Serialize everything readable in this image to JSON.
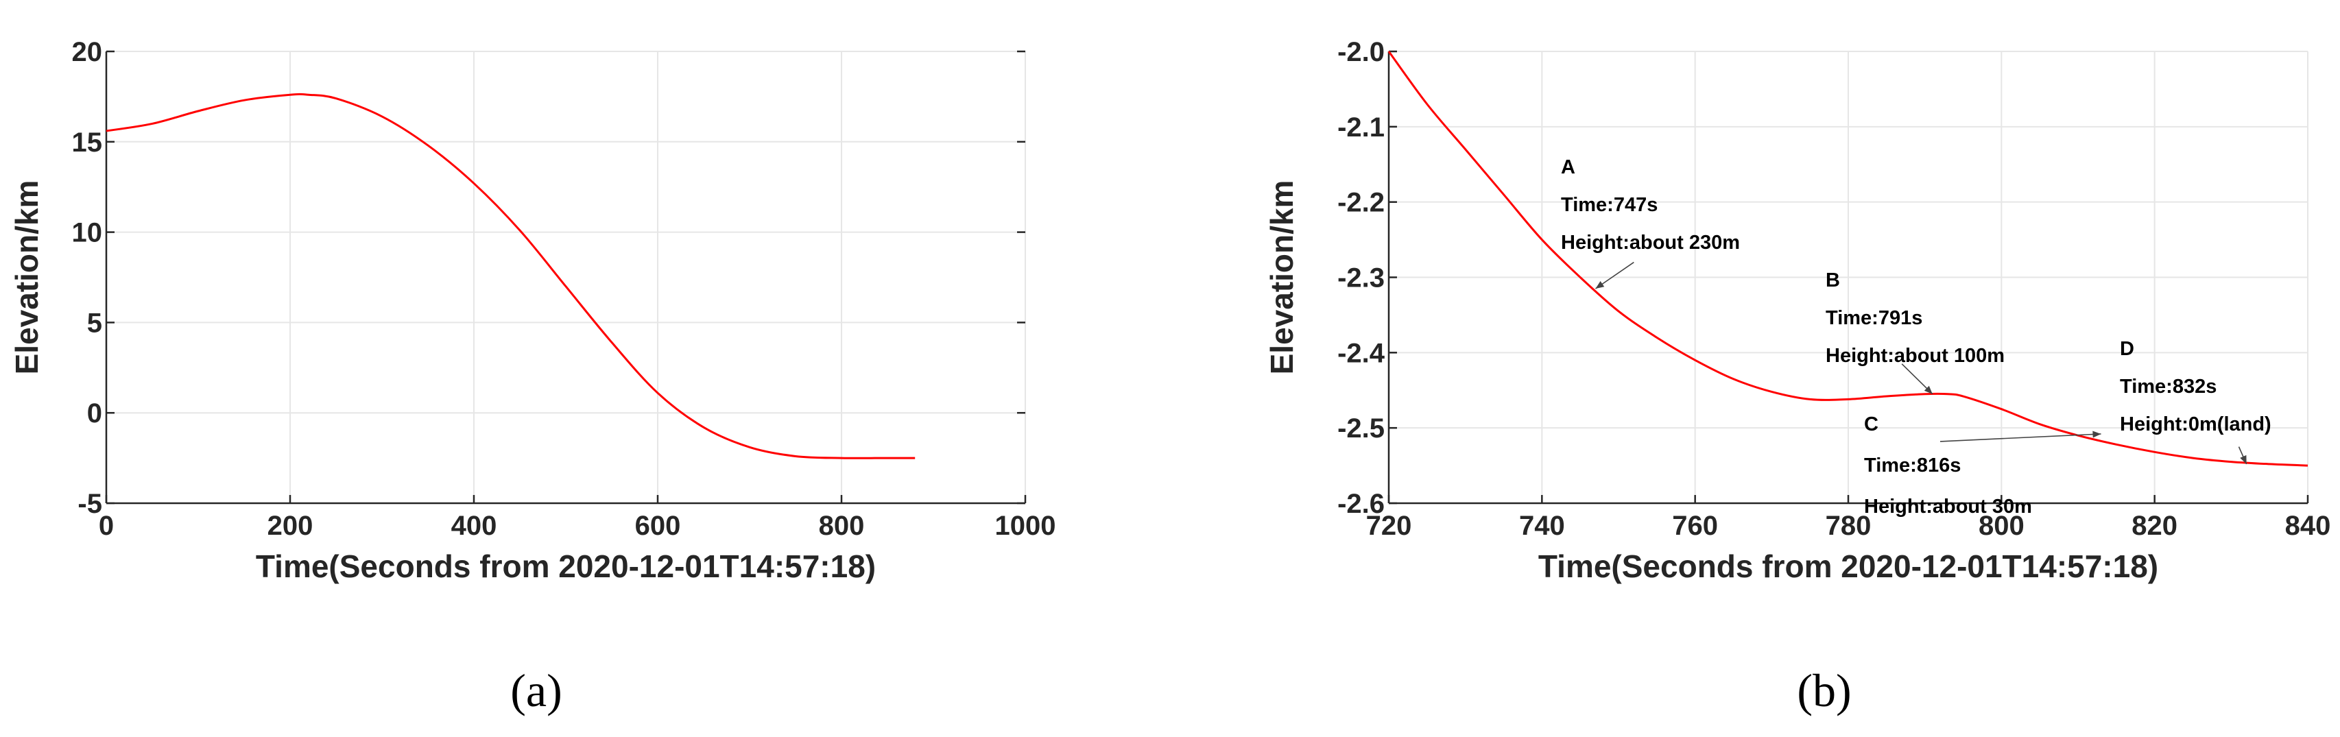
{
  "colors": {
    "series": "#ff0000",
    "axis": "#262626",
    "grid": "#e6e6e6"
  },
  "panels": [
    {
      "label": "(a)"
    },
    {
      "label": "(b)"
    }
  ],
  "chart_data": [
    {
      "type": "line",
      "panel": "(a)",
      "xlabel": "Time(Seconds from 2020-12-01T14:57:18)",
      "ylabel": "Elevation/km",
      "xlim": [
        0,
        1000
      ],
      "ylim": [
        -5,
        20
      ],
      "xticks": [
        0,
        200,
        400,
        600,
        800,
        1000
      ],
      "yticks": [
        -5,
        0,
        5,
        10,
        15,
        20
      ],
      "xtick_labels": [
        "0",
        "200",
        "400",
        "600",
        "800",
        "1000"
      ],
      "ytick_labels": [
        "-5",
        "0",
        "5",
        "10",
        "15",
        "20"
      ],
      "grid": true,
      "series": [
        {
          "x": [
            0,
            50,
            100,
            150,
            200,
            220,
            250,
            300,
            350,
            400,
            450,
            500,
            550,
            600,
            650,
            700,
            750,
            800,
            850,
            880
          ],
          "y": [
            15.6,
            16.0,
            16.7,
            17.3,
            17.6,
            17.6,
            17.4,
            16.4,
            14.8,
            12.7,
            10.1,
            7.0,
            3.9,
            1.1,
            -0.8,
            -1.9,
            -2.4,
            -2.5,
            -2.5,
            -2.5
          ]
        }
      ]
    },
    {
      "type": "line",
      "panel": "(b)",
      "xlabel": "Time(Seconds from 2020-12-01T14:57:18)",
      "ylabel": "Elevation/km",
      "xlim": [
        720,
        840
      ],
      "ylim": [
        -2.6,
        -2.0
      ],
      "xticks": [
        720,
        740,
        760,
        780,
        800,
        820,
        840
      ],
      "yticks": [
        -2.6,
        -2.5,
        -2.4,
        -2.3,
        -2.2,
        -2.1,
        -2.0
      ],
      "xtick_labels": [
        "720",
        "740",
        "760",
        "780",
        "800",
        "820",
        "840"
      ],
      "ytick_labels": [
        "-2.6",
        "-2.5",
        "-2.4",
        "-2.3",
        "-2.2",
        "-2.1",
        "-2.0"
      ],
      "grid": true,
      "series": [
        {
          "x": [
            720,
            725,
            730,
            735,
            740,
            745,
            750,
            755,
            760,
            765,
            770,
            775,
            780,
            785,
            790,
            793,
            795,
            800,
            805,
            810,
            815,
            820,
            825,
            830,
            835,
            840
          ],
          "y": [
            -2.0,
            -2.07,
            -2.13,
            -2.19,
            -2.25,
            -2.3,
            -2.345,
            -2.38,
            -2.41,
            -2.435,
            -2.452,
            -2.462,
            -2.462,
            -2.458,
            -2.455,
            -2.455,
            -2.458,
            -2.475,
            -2.495,
            -2.51,
            -2.522,
            -2.532,
            -2.54,
            -2.545,
            -2.548,
            -2.55
          ]
        }
      ],
      "annotations": [
        {
          "id": "A",
          "lines": [
            "A",
            "Time:747s",
            "Height:about 230m"
          ],
          "tip": [
            747,
            -2.315
          ],
          "tail": [
            752,
            -2.28
          ]
        },
        {
          "id": "B",
          "lines": [
            "B",
            "Time:791s",
            "Height:about 100m"
          ],
          "tip": [
            791,
            -2.455
          ],
          "tail": [
            787,
            -2.415
          ]
        },
        {
          "id": "C",
          "lines": [
            "C",
            "Time:816s",
            "Height:about 30m"
          ],
          "tip": [
            813,
            -2.508
          ],
          "tail": [
            792,
            -2.518
          ]
        },
        {
          "id": "D",
          "lines": [
            "D",
            "Time:832s",
            "Height:0m(land)"
          ],
          "tip": [
            832,
            -2.548
          ],
          "tail": [
            831,
            -2.525
          ]
        }
      ]
    }
  ]
}
